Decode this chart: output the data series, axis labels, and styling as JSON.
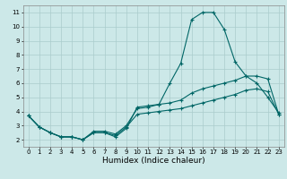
{
  "title": "",
  "xlabel": "Humidex (Indice chaleur)",
  "ylabel": "",
  "background_color": "#cce8e8",
  "grid_color": "#aacccc",
  "line_color": "#006666",
  "xlim": [
    -0.5,
    23.5
  ],
  "ylim": [
    1.5,
    11.5
  ],
  "xticks": [
    0,
    1,
    2,
    3,
    4,
    5,
    6,
    7,
    8,
    9,
    10,
    11,
    12,
    13,
    14,
    15,
    16,
    17,
    18,
    19,
    20,
    21,
    22,
    23
  ],
  "yticks": [
    2,
    3,
    4,
    5,
    6,
    7,
    8,
    9,
    10,
    11
  ],
  "line1_x": [
    0,
    1,
    2,
    3,
    4,
    5,
    6,
    7,
    8,
    9,
    10,
    11,
    12,
    13,
    14,
    15,
    16,
    17,
    18,
    19,
    20,
    21,
    22,
    23
  ],
  "line1_y": [
    3.7,
    2.9,
    2.5,
    2.2,
    2.2,
    2.0,
    2.5,
    2.5,
    2.2,
    2.8,
    4.3,
    4.4,
    4.5,
    6.0,
    7.4,
    10.5,
    11.0,
    11.0,
    9.8,
    7.5,
    6.5,
    6.0,
    5.0,
    3.9
  ],
  "line2_x": [
    0,
    1,
    2,
    3,
    4,
    5,
    6,
    7,
    8,
    9,
    10,
    11,
    12,
    13,
    14,
    15,
    16,
    17,
    18,
    19,
    20,
    21,
    22,
    23
  ],
  "line2_y": [
    3.7,
    2.9,
    2.5,
    2.2,
    2.2,
    2.0,
    2.6,
    2.6,
    2.4,
    3.0,
    4.2,
    4.3,
    4.5,
    4.6,
    4.8,
    5.3,
    5.6,
    5.8,
    6.0,
    6.2,
    6.5,
    6.5,
    6.3,
    3.8
  ],
  "line3_x": [
    0,
    1,
    2,
    3,
    4,
    5,
    6,
    7,
    8,
    9,
    10,
    11,
    12,
    13,
    14,
    15,
    16,
    17,
    18,
    19,
    20,
    21,
    22,
    23
  ],
  "line3_y": [
    3.7,
    2.9,
    2.5,
    2.2,
    2.2,
    2.0,
    2.5,
    2.5,
    2.3,
    2.9,
    3.8,
    3.9,
    4.0,
    4.1,
    4.2,
    4.4,
    4.6,
    4.8,
    5.0,
    5.2,
    5.5,
    5.6,
    5.4,
    3.8
  ],
  "marker": "+",
  "markersize": 3,
  "linewidth": 0.8,
  "tick_labelsize": 5,
  "xlabel_fontsize": 6.5
}
